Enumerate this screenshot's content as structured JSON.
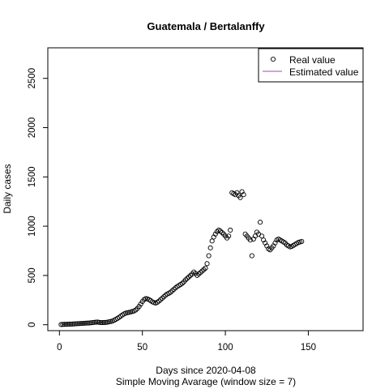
{
  "chart_data": {
    "type": "scatter",
    "title": "Guatemala / Bertalanffy",
    "xlabel": "Days since 2020-04-08",
    "subtitle": "Simple Moving Avarage (window size = 7)",
    "ylabel": "Daily cases",
    "xlim": [
      -7,
      183
    ],
    "ylim": [
      -60,
      2810
    ],
    "xticks": [
      0,
      50,
      100,
      150
    ],
    "yticks": [
      0,
      500,
      1000,
      1500,
      2000,
      2500
    ],
    "grid": false,
    "legend_position": "top-right",
    "legend": [
      {
        "label": "Real value",
        "marker": "open-circle",
        "color": "#000000"
      },
      {
        "label": "Estimated value",
        "marker": "line",
        "color": "#9b4f9b"
      }
    ],
    "series": [
      {
        "name": "Real value",
        "marker": "open-circle",
        "points": [
          [
            1,
            2
          ],
          [
            2,
            3
          ],
          [
            3,
            4
          ],
          [
            4,
            4
          ],
          [
            5,
            5
          ],
          [
            6,
            6
          ],
          [
            7,
            6
          ],
          [
            8,
            7
          ],
          [
            9,
            8
          ],
          [
            10,
            10
          ],
          [
            11,
            11
          ],
          [
            12,
            12
          ],
          [
            13,
            13
          ],
          [
            14,
            14
          ],
          [
            15,
            15
          ],
          [
            16,
            16
          ],
          [
            17,
            17
          ],
          [
            18,
            18
          ],
          [
            19,
            20
          ],
          [
            20,
            22
          ],
          [
            21,
            24
          ],
          [
            22,
            26
          ],
          [
            23,
            27
          ],
          [
            24,
            24
          ],
          [
            25,
            22
          ],
          [
            26,
            22
          ],
          [
            27,
            23
          ],
          [
            28,
            24
          ],
          [
            29,
            26
          ],
          [
            30,
            30
          ],
          [
            31,
            33
          ],
          [
            32,
            38
          ],
          [
            33,
            45
          ],
          [
            34,
            55
          ],
          [
            35,
            65
          ],
          [
            36,
            75
          ],
          [
            37,
            88
          ],
          [
            38,
            100
          ],
          [
            39,
            110
          ],
          [
            40,
            118
          ],
          [
            41,
            122
          ],
          [
            42,
            126
          ],
          [
            43,
            130
          ],
          [
            44,
            135
          ],
          [
            45,
            140
          ],
          [
            46,
            150
          ],
          [
            47,
            165
          ],
          [
            48,
            185
          ],
          [
            49,
            210
          ],
          [
            50,
            235
          ],
          [
            51,
            255
          ],
          [
            52,
            265
          ],
          [
            53,
            262
          ],
          [
            54,
            255
          ],
          [
            55,
            245
          ],
          [
            56,
            232
          ],
          [
            57,
            225
          ],
          [
            58,
            220
          ],
          [
            59,
            228
          ],
          [
            60,
            240
          ],
          [
            61,
            255
          ],
          [
            62,
            270
          ],
          [
            63,
            285
          ],
          [
            64,
            300
          ],
          [
            65,
            312
          ],
          [
            66,
            320
          ],
          [
            67,
            330
          ],
          [
            68,
            345
          ],
          [
            69,
            360
          ],
          [
            70,
            375
          ],
          [
            71,
            388
          ],
          [
            72,
            398
          ],
          [
            73,
            408
          ],
          [
            74,
            420
          ],
          [
            75,
            435
          ],
          [
            76,
            455
          ],
          [
            77,
            470
          ],
          [
            78,
            485
          ],
          [
            79,
            500
          ],
          [
            80,
            515
          ],
          [
            81,
            535
          ],
          [
            82,
            520
          ],
          [
            83,
            500
          ],
          [
            84,
            515
          ],
          [
            85,
            530
          ],
          [
            86,
            545
          ],
          [
            87,
            560
          ],
          [
            88,
            575
          ],
          [
            89,
            620
          ],
          [
            90,
            700
          ],
          [
            91,
            780
          ],
          [
            92,
            850
          ],
          [
            93,
            890
          ],
          [
            94,
            920
          ],
          [
            95,
            945
          ],
          [
            96,
            960
          ],
          [
            97,
            950
          ],
          [
            98,
            935
          ],
          [
            99,
            920
          ],
          [
            100,
            900
          ],
          [
            101,
            880
          ],
          [
            102,
            900
          ],
          [
            103,
            960
          ],
          [
            104,
            1340
          ],
          [
            105,
            1330
          ],
          [
            106,
            1320
          ],
          [
            107,
            1340
          ],
          [
            108,
            1310
          ],
          [
            109,
            1290
          ],
          [
            110,
            1350
          ],
          [
            111,
            1320
          ],
          [
            112,
            920
          ],
          [
            113,
            900
          ],
          [
            114,
            880
          ],
          [
            115,
            860
          ],
          [
            116,
            700
          ],
          [
            117,
            870
          ],
          [
            118,
            900
          ],
          [
            119,
            940
          ],
          [
            120,
            920
          ],
          [
            121,
            1040
          ],
          [
            122,
            900
          ],
          [
            123,
            860
          ],
          [
            124,
            830
          ],
          [
            125,
            800
          ],
          [
            126,
            770
          ],
          [
            127,
            760
          ],
          [
            128,
            780
          ],
          [
            129,
            800
          ],
          [
            130,
            830
          ],
          [
            131,
            860
          ],
          [
            132,
            870
          ],
          [
            133,
            860
          ],
          [
            134,
            850
          ],
          [
            135,
            840
          ],
          [
            136,
            830
          ],
          [
            137,
            810
          ],
          [
            138,
            800
          ],
          [
            139,
            790
          ],
          [
            140,
            795
          ],
          [
            141,
            805
          ],
          [
            142,
            815
          ],
          [
            143,
            825
          ],
          [
            144,
            835
          ],
          [
            145,
            840
          ],
          [
            146,
            845
          ]
        ]
      },
      {
        "name": "Estimated value",
        "marker": "line",
        "points": []
      }
    ]
  }
}
